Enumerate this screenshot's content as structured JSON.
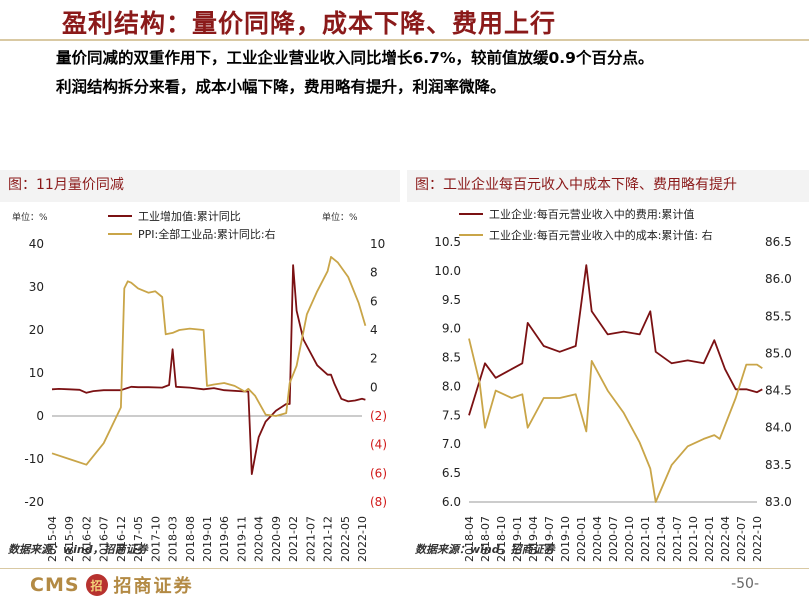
{
  "header": {
    "title": "盈利结构：量价同降，成本下降、费用上行",
    "bullet1": "量价同减的双重作用下，工业企业营业收入同比增长6.7%，较前值放缓0.9个百分点。",
    "bullet2": "利润结构拆分来看，成本小幅下降，费用略有提升，利润率微降。"
  },
  "left_panel": {
    "title": "图：11月量价同减",
    "source": "数据来源：wind，招商证券",
    "unit_left": "单位：%",
    "unit_right": "单位：%"
  },
  "right_panel": {
    "title": "图：工业企业每百元收入中成本下降、费用略有提升",
    "source": "数据来源：wind，招商证券"
  },
  "footer": {
    "logo_text": "CMS",
    "logo_mark": "招",
    "logo_cn": "招商证券",
    "page": "-50-"
  },
  "colors": {
    "series_dark": "#7b1113",
    "series_gold": "#c9a548",
    "accent": "#8b1a1a"
  },
  "chart_data": [
    {
      "type": "line",
      "y_left": {
        "ylim": [
          -20,
          40
        ],
        "ticks": [
          "40",
          "30",
          "20",
          "10",
          "0",
          "-10",
          "-20"
        ]
      },
      "y_right": {
        "ylim": [
          -8,
          10
        ],
        "ticks": [
          "10",
          "8",
          "6",
          "4",
          "2",
          "0",
          "(2)",
          "(4)",
          "(6)",
          "(8)"
        ]
      },
      "x_ticks": [
        "2015-04",
        "2015-09",
        "2016-02",
        "2016-07",
        "2016-12",
        "2017-05",
        "2017-10",
        "2018-03",
        "2018-08",
        "2019-01",
        "2019-06",
        "2019-11",
        "2020-04",
        "2020-09",
        "2021-02",
        "2021-07",
        "2021-12",
        "2022-05",
        "2022-10"
      ],
      "series": [
        {
          "name": "工业增加值:累计同比",
          "axis": "left",
          "x": [
            "2015-04",
            "2015-06",
            "2015-09",
            "2015-12",
            "2016-02",
            "2016-04",
            "2016-07",
            "2016-12",
            "2017-03",
            "2017-05",
            "2017-08",
            "2017-12",
            "2018-02",
            "2018-03",
            "2018-04",
            "2018-08",
            "2018-12",
            "2019-03",
            "2019-06",
            "2019-12",
            "2020-01",
            "2020-02",
            "2020-04",
            "2020-06",
            "2020-09",
            "2020-12",
            "2021-01",
            "2021-02",
            "2021-03",
            "2021-05",
            "2021-09",
            "2021-12",
            "2022-01",
            "2022-02",
            "2022-04",
            "2022-06",
            "2022-08",
            "2022-10",
            "2022-11"
          ],
          "values": [
            6.2,
            6.3,
            6.2,
            6.1,
            5.4,
            5.8,
            6.0,
            6.0,
            6.8,
            6.7,
            6.7,
            6.6,
            7.2,
            15.5,
            6.8,
            6.6,
            6.2,
            6.5,
            6.0,
            5.7,
            5.7,
            -13.5,
            -4.9,
            -1.3,
            1.2,
            2.8,
            2.8,
            35.1,
            24.5,
            17.8,
            11.8,
            9.6,
            9.6,
            7.5,
            4.0,
            3.4,
            3.6,
            4.0,
            3.8
          ]
        },
        {
          "name": "PPI:全部工业品:累计同比:右",
          "axis": "right",
          "x": [
            "2015-04",
            "2015-09",
            "2016-02",
            "2016-07",
            "2016-12",
            "2017-01",
            "2017-02",
            "2017-03",
            "2017-05",
            "2017-08",
            "2017-10",
            "2017-12",
            "2018-01",
            "2018-03",
            "2018-05",
            "2018-08",
            "2018-12",
            "2019-01",
            "2019-03",
            "2019-06",
            "2019-09",
            "2019-12",
            "2020-01",
            "2020-03",
            "2020-06",
            "2020-09",
            "2020-12",
            "2021-01",
            "2021-03",
            "2021-06",
            "2021-09",
            "2021-12",
            "2022-01",
            "2022-03",
            "2022-06",
            "2022-09",
            "2022-11"
          ],
          "values": [
            -4.6,
            -5.0,
            -5.4,
            -3.9,
            -1.4,
            6.9,
            7.4,
            7.3,
            6.9,
            6.6,
            6.7,
            6.3,
            3.7,
            3.8,
            4.0,
            4.1,
            4.0,
            0.1,
            0.2,
            0.3,
            0.1,
            -0.3,
            -0.1,
            -0.6,
            -1.9,
            -2.0,
            -1.8,
            0.3,
            1.5,
            5.1,
            6.7,
            8.1,
            9.1,
            8.7,
            7.7,
            5.9,
            4.3
          ]
        }
      ]
    },
    {
      "type": "line",
      "y_left": {
        "ylim": [
          6.0,
          10.5
        ],
        "ticks": [
          "10.5",
          "10.0",
          "9.5",
          "9.0",
          "8.5",
          "8.0",
          "7.5",
          "7.0",
          "6.5",
          "6.0"
        ]
      },
      "y_right": {
        "ylim": [
          83.0,
          86.5
        ],
        "ticks": [
          "86.5",
          "86.0",
          "85.5",
          "85.0",
          "84.5",
          "84.0",
          "83.5",
          "83.0"
        ]
      },
      "x_ticks": [
        "2018-04",
        "2018-07",
        "2018-10",
        "2019-01",
        "2019-04",
        "2019-07",
        "2019-10",
        "2020-01",
        "2020-04",
        "2020-07",
        "2020-10",
        "2021-01",
        "2021-04",
        "2021-07",
        "2021-10",
        "2022-01",
        "2022-04",
        "2022-07",
        "2022-10"
      ],
      "series": [
        {
          "name": "工业企业:每百元营业收入中的费用:累计值",
          "axis": "left",
          "x": [
            "2018-04",
            "2018-07",
            "2018-09",
            "2018-12",
            "2019-02",
            "2019-03",
            "2019-06",
            "2019-09",
            "2019-12",
            "2020-02",
            "2020-03",
            "2020-06",
            "2020-09",
            "2020-12",
            "2021-02",
            "2021-03",
            "2021-06",
            "2021-09",
            "2021-12",
            "2022-02",
            "2022-04",
            "2022-06",
            "2022-08",
            "2022-10",
            "2022-11"
          ],
          "values": [
            7.5,
            8.4,
            8.15,
            8.3,
            8.4,
            9.1,
            8.7,
            8.6,
            8.7,
            10.1,
            9.3,
            8.9,
            8.95,
            8.9,
            9.3,
            8.6,
            8.4,
            8.45,
            8.4,
            8.8,
            8.3,
            7.95,
            7.95,
            7.9,
            7.95
          ]
        },
        {
          "name": "工业企业:每百元营业收入中的成本:累计值: 右",
          "axis": "right",
          "x": [
            "2018-04",
            "2018-06",
            "2018-07",
            "2018-09",
            "2018-12",
            "2019-02",
            "2019-03",
            "2019-06",
            "2019-09",
            "2019-12",
            "2020-02",
            "2020-03",
            "2020-06",
            "2020-09",
            "2020-12",
            "2021-02",
            "2021-03",
            "2021-06",
            "2021-09",
            "2021-12",
            "2022-02",
            "2022-03",
            "2022-06",
            "2022-08",
            "2022-10",
            "2022-11"
          ],
          "values": [
            85.2,
            84.6,
            84.0,
            84.5,
            84.4,
            84.45,
            84.0,
            84.4,
            84.4,
            84.45,
            83.95,
            84.9,
            84.5,
            84.2,
            83.8,
            83.45,
            83.0,
            83.5,
            83.75,
            83.85,
            83.9,
            83.85,
            84.4,
            84.85,
            84.85,
            84.8
          ]
        }
      ]
    }
  ]
}
